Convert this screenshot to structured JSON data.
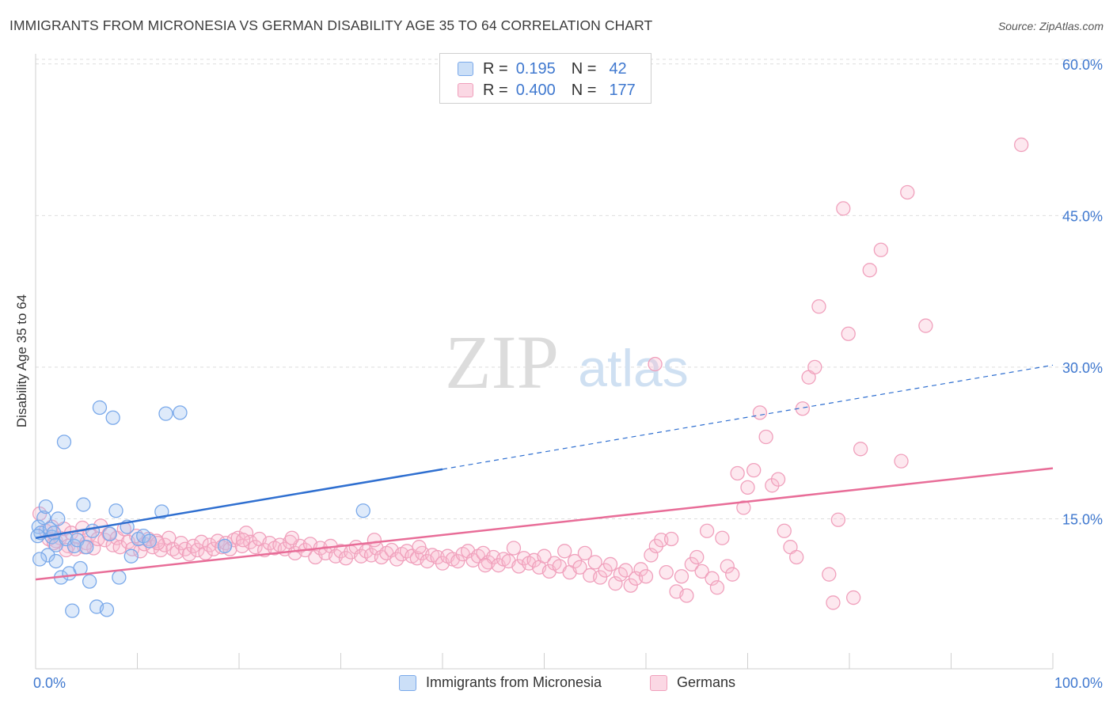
{
  "title": "IMMIGRANTS FROM MICRONESIA VS GERMAN DISABILITY AGE 35 TO 64 CORRELATION CHART",
  "source": "Source: ZipAtlas.com",
  "watermark": {
    "zip": "ZIP",
    "atlas": "atlas"
  },
  "legend": {
    "rows": [
      {
        "r_label": "R =",
        "r_value": "0.195",
        "n_label": "N =",
        "n_value": "42"
      },
      {
        "r_label": "R =",
        "r_value": "0.400",
        "n_label": "N =",
        "n_value": "177"
      }
    ]
  },
  "bottom_legend": {
    "micronesia": "Immigrants from Micronesia",
    "germans": "Germans"
  },
  "colors": {
    "blue": "#7aa9ea",
    "blue_fill": "rgba(160,196,240,0.35)",
    "blue_line": "#2f6fd0",
    "pink": "#f0a0bc",
    "pink_fill": "rgba(248,190,210,0.35)",
    "pink_line": "#e86d98",
    "tick_text": "#3f78cf"
  },
  "chart_data": {
    "type": "scatter",
    "title": "IMMIGRANTS FROM MICRONESIA VS GERMAN DISABILITY AGE 35 TO 64 CORRELATION CHART",
    "xlabel": "",
    "ylabel": "Disability Age 35 to 64",
    "xlim": [
      0,
      100
    ],
    "ylim": [
      0,
      62
    ],
    "x_tick_labels": [
      "0.0%",
      "100.0%"
    ],
    "y_ticks": [
      15,
      30,
      45,
      60
    ],
    "y_tick_labels": [
      "15.0%",
      "30.0%",
      "45.0%",
      "60.0%"
    ],
    "grid": true,
    "series": [
      {
        "name": "Immigrants from Micronesia",
        "R": 0.195,
        "N": 42,
        "trend": {
          "x": [
            0,
            40
          ],
          "y": [
            13.1,
            19.9
          ],
          "dashed_to": [
            100,
            30.2
          ]
        },
        "points": [
          [
            0.3,
            14.2
          ],
          [
            0.5,
            13.6
          ],
          [
            0.8,
            15.1
          ],
          [
            1.0,
            16.2
          ],
          [
            1.2,
            11.4
          ],
          [
            1.4,
            14.0
          ],
          [
            1.6,
            13.2
          ],
          [
            1.8,
            13.6
          ],
          [
            2.0,
            12.4
          ],
          [
            2.2,
            15.0
          ],
          [
            2.5,
            9.2
          ],
          [
            2.8,
            22.6
          ],
          [
            2.0,
            10.8
          ],
          [
            3.0,
            13.0
          ],
          [
            3.3,
            9.6
          ],
          [
            3.6,
            5.9
          ],
          [
            3.8,
            12.3
          ],
          [
            4.1,
            12.9
          ],
          [
            4.4,
            10.1
          ],
          [
            4.7,
            16.4
          ],
          [
            5.0,
            12.2
          ],
          [
            5.3,
            8.8
          ],
          [
            5.6,
            13.8
          ],
          [
            6.0,
            6.3
          ],
          [
            6.3,
            26.0
          ],
          [
            7.0,
            6.0
          ],
          [
            7.3,
            13.5
          ],
          [
            7.6,
            25.0
          ],
          [
            7.9,
            15.8
          ],
          [
            8.2,
            9.2
          ],
          [
            9.0,
            14.2
          ],
          [
            9.4,
            11.3
          ],
          [
            10.1,
            13.0
          ],
          [
            10.6,
            13.3
          ],
          [
            11.2,
            12.8
          ],
          [
            12.4,
            15.7
          ],
          [
            12.8,
            25.4
          ],
          [
            14.2,
            25.5
          ],
          [
            18.6,
            12.3
          ],
          [
            0.4,
            11.0
          ],
          [
            32.2,
            15.8
          ],
          [
            0.2,
            13.3
          ]
        ]
      },
      {
        "name": "Germans",
        "R": 0.4,
        "N": 177,
        "trend": {
          "x": [
            0,
            100
          ],
          "y": [
            9.0,
            20.0
          ]
        },
        "points": [
          [
            0.4,
            15.5
          ],
          [
            1.0,
            13.8
          ],
          [
            1.3,
            13.0
          ],
          [
            1.6,
            14.2
          ],
          [
            2.0,
            12.8
          ],
          [
            2.4,
            13.1
          ],
          [
            2.8,
            14.0
          ],
          [
            3.2,
            12.3
          ],
          [
            3.5,
            13.6
          ],
          [
            3.9,
            12.0
          ],
          [
            4.2,
            13.2
          ],
          [
            4.6,
            14.1
          ],
          [
            5.0,
            12.6
          ],
          [
            5.3,
            13.4
          ],
          [
            5.7,
            12.1
          ],
          [
            6.1,
            13.0
          ],
          [
            6.4,
            14.3
          ],
          [
            6.8,
            12.9
          ],
          [
            7.2,
            13.5
          ],
          [
            7.6,
            12.4
          ],
          [
            8.0,
            13.1
          ],
          [
            8.3,
            12.2
          ],
          [
            8.7,
            14.0
          ],
          [
            9.1,
            12.7
          ],
          [
            9.5,
            12.0
          ],
          [
            9.9,
            13.3
          ],
          [
            10.3,
            11.8
          ],
          [
            10.7,
            12.5
          ],
          [
            11.1,
            13.0
          ],
          [
            11.5,
            12.2
          ],
          [
            11.9,
            12.8
          ],
          [
            12.3,
            11.9
          ],
          [
            12.7,
            12.4
          ],
          [
            13.1,
            13.1
          ],
          [
            13.5,
            12.0
          ],
          [
            13.9,
            11.7
          ],
          [
            14.3,
            12.6
          ],
          [
            14.7,
            12.0
          ],
          [
            15.1,
            11.5
          ],
          [
            15.5,
            12.3
          ],
          [
            15.9,
            11.9
          ],
          [
            16.3,
            12.7
          ],
          [
            16.7,
            11.6
          ],
          [
            17.1,
            12.4
          ],
          [
            17.5,
            12.0
          ],
          [
            17.9,
            12.8
          ],
          [
            18.3,
            12.2
          ],
          [
            18.7,
            12.6
          ],
          [
            19.1,
            12.0
          ],
          [
            19.5,
            12.9
          ],
          [
            19.9,
            13.1
          ],
          [
            20.3,
            12.3
          ],
          [
            20.7,
            13.6
          ],
          [
            21.1,
            12.7
          ],
          [
            21.6,
            12.2
          ],
          [
            22.0,
            13.0
          ],
          [
            22.5,
            11.9
          ],
          [
            23.0,
            12.6
          ],
          [
            23.5,
            12.1
          ],
          [
            24.0,
            12.4
          ],
          [
            24.5,
            12.0
          ],
          [
            25.0,
            12.7
          ],
          [
            25.5,
            11.6
          ],
          [
            26.0,
            12.3
          ],
          [
            26.5,
            11.9
          ],
          [
            27.0,
            12.5
          ],
          [
            27.5,
            11.2
          ],
          [
            28.0,
            12.1
          ],
          [
            28.5,
            11.6
          ],
          [
            29.0,
            12.3
          ],
          [
            29.5,
            11.3
          ],
          [
            30.0,
            11.8
          ],
          [
            30.5,
            11.1
          ],
          [
            31.0,
            11.7
          ],
          [
            31.5,
            12.2
          ],
          [
            32.0,
            11.3
          ],
          [
            32.5,
            11.8
          ],
          [
            33.0,
            11.4
          ],
          [
            33.5,
            12.1
          ],
          [
            34.0,
            11.2
          ],
          [
            34.5,
            11.6
          ],
          [
            35.0,
            11.9
          ],
          [
            35.5,
            11.0
          ],
          [
            36.0,
            11.5
          ],
          [
            36.5,
            11.8
          ],
          [
            37.0,
            11.3
          ],
          [
            37.5,
            11.1
          ],
          [
            38.0,
            11.6
          ],
          [
            38.5,
            10.8
          ],
          [
            39.0,
            11.4
          ],
          [
            39.5,
            11.2
          ],
          [
            40.0,
            10.6
          ],
          [
            40.5,
            11.3
          ],
          [
            41.0,
            11.0
          ],
          [
            41.5,
            10.8
          ],
          [
            42.0,
            11.5
          ],
          [
            42.5,
            11.8
          ],
          [
            43.0,
            10.9
          ],
          [
            43.5,
            11.3
          ],
          [
            44.0,
            11.6
          ],
          [
            44.5,
            10.7
          ],
          [
            45.0,
            11.2
          ],
          [
            45.5,
            10.4
          ],
          [
            46.0,
            11.0
          ],
          [
            46.5,
            10.8
          ],
          [
            47.0,
            12.1
          ],
          [
            47.5,
            10.3
          ],
          [
            48.0,
            11.1
          ],
          [
            48.5,
            10.6
          ],
          [
            49.0,
            10.9
          ],
          [
            49.5,
            10.2
          ],
          [
            50.0,
            11.3
          ],
          [
            50.5,
            9.8
          ],
          [
            51.0,
            10.6
          ],
          [
            51.5,
            10.3
          ],
          [
            52.0,
            11.8
          ],
          [
            52.5,
            9.7
          ],
          [
            53.0,
            10.8
          ],
          [
            53.5,
            10.2
          ],
          [
            54.0,
            11.6
          ],
          [
            54.5,
            9.4
          ],
          [
            55.0,
            10.7
          ],
          [
            55.5,
            9.2
          ],
          [
            56.0,
            9.9
          ],
          [
            56.5,
            10.5
          ],
          [
            57.0,
            8.6
          ],
          [
            57.5,
            9.5
          ],
          [
            58.0,
            9.9
          ],
          [
            58.5,
            8.4
          ],
          [
            59.0,
            9.1
          ],
          [
            59.5,
            10.0
          ],
          [
            60.0,
            9.3
          ],
          [
            60.5,
            11.4
          ],
          [
            61.0,
            12.3
          ],
          [
            61.5,
            12.9
          ],
          [
            62.0,
            9.7
          ],
          [
            62.5,
            13.0
          ],
          [
            63.0,
            7.8
          ],
          [
            63.5,
            9.3
          ],
          [
            64.0,
            7.4
          ],
          [
            64.5,
            10.5
          ],
          [
            65.0,
            11.2
          ],
          [
            65.5,
            9.8
          ],
          [
            66.0,
            13.8
          ],
          [
            66.5,
            9.1
          ],
          [
            67.0,
            8.2
          ],
          [
            67.5,
            13.1
          ],
          [
            68.0,
            10.3
          ],
          [
            68.5,
            9.5
          ],
          [
            69.0,
            19.5
          ],
          [
            69.6,
            16.1
          ],
          [
            70.0,
            18.1
          ],
          [
            70.6,
            19.8
          ],
          [
            71.2,
            25.5
          ],
          [
            71.8,
            23.1
          ],
          [
            72.4,
            18.3
          ],
          [
            73.0,
            18.9
          ],
          [
            73.6,
            13.8
          ],
          [
            74.2,
            12.2
          ],
          [
            74.8,
            11.2
          ],
          [
            75.4,
            25.9
          ],
          [
            76.0,
            29.0
          ],
          [
            76.6,
            30.0
          ],
          [
            77.0,
            36.0
          ],
          [
            78.0,
            9.5
          ],
          [
            78.4,
            6.7
          ],
          [
            78.9,
            14.9
          ],
          [
            79.4,
            45.7
          ],
          [
            79.9,
            33.3
          ],
          [
            80.4,
            7.2
          ],
          [
            81.1,
            21.9
          ],
          [
            82.0,
            39.6
          ],
          [
            83.1,
            41.6
          ],
          [
            85.1,
            20.7
          ],
          [
            85.7,
            47.3
          ],
          [
            87.5,
            34.1
          ],
          [
            96.9,
            52.0
          ],
          [
            60.9,
            30.3
          ],
          [
            20.4,
            12.9
          ],
          [
            4.8,
            12.2
          ],
          [
            1.8,
            12.6
          ],
          [
            3.0,
            11.9
          ],
          [
            12.0,
            12.6
          ],
          [
            25.2,
            13.1
          ],
          [
            33.3,
            12.9
          ],
          [
            37.7,
            12.2
          ],
          [
            44.2,
            10.4
          ]
        ]
      }
    ]
  }
}
